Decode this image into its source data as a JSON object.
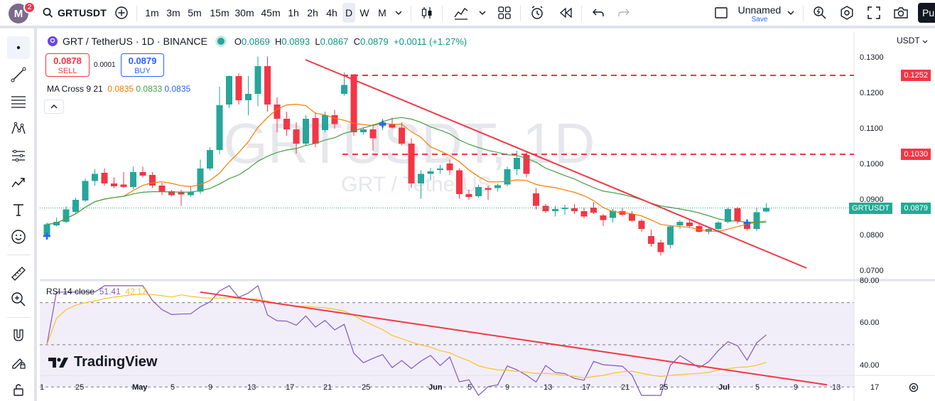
{
  "topbar": {
    "avatar_letter": "M",
    "notifications": "2",
    "symbol": "GRTUSDT",
    "timeframes": [
      "1m",
      "3m",
      "5m",
      "15m",
      "30m",
      "45m",
      "1h",
      "2h",
      "4h",
      "D",
      "W",
      "M"
    ],
    "active_timeframe": "D",
    "layout_name": "Unnamed",
    "layout_save": "Save",
    "publish_label": "Pu"
  },
  "legend": {
    "title": "GRT / TetherUS · 1D · BINANCE",
    "o_label": "O",
    "o": "0.0869",
    "h_label": "H",
    "h": "0.0893",
    "l_label": "L",
    "l": "0.0867",
    "c_label": "C",
    "c": "0.0879",
    "change": "+0.0011 (+1.27%)",
    "sell_price": "0.0878",
    "sell_label": "SELL",
    "spread": "0.0001",
    "buy_price": "0.0879",
    "buy_label": "BUY",
    "ma_title": "MA Cross 9 21",
    "ma_fast": "0.0835",
    "ma_slow": "0.0833",
    "ma_cross": "0.0835",
    "rsi_title": "RSI 14 close",
    "rsi_value": "51.41",
    "rsi_ma": "42.17"
  },
  "watermark": {
    "main": "GRTUSDT, 1D",
    "sub": "GRT / TetherUS"
  },
  "price_axis": {
    "currency": "USDT",
    "ticks": [
      "0.1300",
      "0.1200",
      "0.1100",
      "0.1000",
      "0.0900",
      "0.0800",
      "0.0700"
    ],
    "tags": [
      {
        "label": "0.1252",
        "color": "#f23645"
      },
      {
        "label": "0.1030",
        "color": "#f23645"
      },
      {
        "label": "GRTUSDT",
        "color": "#22ab94"
      },
      {
        "label": "0.0879",
        "color": "#22ab94"
      }
    ],
    "rsi_ticks": [
      "80.00",
      "60.00",
      "40.00"
    ]
  },
  "time_axis": [
    "1",
    "25",
    "May",
    "5",
    "9",
    "13",
    "17",
    "21",
    "25",
    "Jun",
    "5",
    "9",
    "13",
    "17",
    "21",
    "25",
    "Jul",
    "5",
    "9",
    "13",
    "17"
  ],
  "brand": "TradingView",
  "colors": {
    "up": "#26a69a",
    "down": "#f23645",
    "ma_fast": "#f57c00",
    "ma_slow": "#43a047",
    "rsi": "#7e57c2",
    "rsi_ma": "#fbc02d",
    "trend": "#f23645",
    "cross": "#2962ff"
  },
  "chart_data": {
    "type": "candlestick",
    "interval": "1D",
    "y_range": [
      0.0685,
      0.131
    ],
    "levels": [
      0.1252,
      0.103
    ],
    "last_price": 0.0879,
    "trendline_price": [
      [
        0,
        0.1296
      ],
      [
        43,
        0.071
      ]
    ],
    "trendline_rsi": [
      [
        14,
        75
      ],
      [
        44,
        31
      ]
    ],
    "rsi_range": [
      24,
      80
    ],
    "rsi_bands": [
      70,
      50,
      30
    ],
    "candles": [
      [
        0.0798,
        0.0838,
        0.0795,
        0.0833
      ],
      [
        0.083,
        0.0852,
        0.0828,
        0.084
      ],
      [
        0.084,
        0.0884,
        0.0836,
        0.0875
      ],
      [
        0.0868,
        0.0908,
        0.0862,
        0.0902
      ],
      [
        0.09,
        0.0962,
        0.0896,
        0.0955
      ],
      [
        0.0955,
        0.0988,
        0.0942,
        0.0975
      ],
      [
        0.0978,
        0.099,
        0.0942,
        0.0948
      ],
      [
        0.0948,
        0.0965,
        0.0935,
        0.094
      ],
      [
        0.0945,
        0.098,
        0.0935,
        0.0938
      ],
      [
        0.0938,
        0.0995,
        0.0932,
        0.098
      ],
      [
        0.098,
        0.0995,
        0.0965,
        0.097
      ],
      [
        0.0972,
        0.098,
        0.0935,
        0.0942
      ],
      [
        0.0942,
        0.095,
        0.0915,
        0.0925
      ],
      [
        0.0926,
        0.093,
        0.0912,
        0.0915
      ],
      [
        0.0925,
        0.093,
        0.0885,
        0.0917
      ],
      [
        0.0915,
        0.094,
        0.091,
        0.0925
      ],
      [
        0.0925,
        0.1015,
        0.0918,
        0.099
      ],
      [
        0.099,
        0.105,
        0.0985,
        0.1042
      ],
      [
        0.1042,
        0.122,
        0.103,
        0.1168
      ],
      [
        0.117,
        0.1252,
        0.116,
        0.125
      ],
      [
        0.125,
        0.1258,
        0.117,
        0.1182
      ],
      [
        0.1182,
        0.125,
        0.114,
        0.12
      ],
      [
        0.12,
        0.1305,
        0.1165,
        0.1278
      ],
      [
        0.1278,
        0.1305,
        0.115,
        0.117
      ],
      [
        0.117,
        0.119,
        0.1092,
        0.113
      ],
      [
        0.113,
        0.115,
        0.1082,
        0.11
      ],
      [
        0.11,
        0.112,
        0.1032,
        0.106
      ],
      [
        0.106,
        0.114,
        0.1055,
        0.113
      ],
      [
        0.1132,
        0.1148,
        0.105,
        0.106
      ],
      [
        0.1098,
        0.115,
        0.1092,
        0.114
      ],
      [
        0.114,
        0.1155,
        0.1102,
        0.1115
      ],
      [
        0.12,
        0.126,
        0.1195,
        0.1225
      ],
      [
        0.1255,
        0.1255,
        0.1082,
        0.1092
      ],
      [
        0.1092,
        0.1106,
        0.1085,
        0.11
      ],
      [
        0.11,
        0.1115,
        0.104,
        0.1075
      ],
      [
        0.111,
        0.113,
        0.1098,
        0.112
      ],
      [
        0.1115,
        0.1133,
        0.1102,
        0.1105
      ],
      [
        0.1105,
        0.112,
        0.1055,
        0.106
      ],
      [
        0.106,
        0.1075,
        0.0936,
        0.0948
      ],
      [
        0.0948,
        0.0985,
        0.0905,
        0.0975
      ],
      [
        0.0975,
        0.0992,
        0.0957,
        0.0982
      ],
      [
        0.0986,
        0.1,
        0.0975,
        0.099
      ],
      [
        0.1004,
        0.1015,
        0.0972,
        0.0985
      ],
      [
        0.0985,
        0.099,
        0.0905,
        0.0918
      ],
      [
        0.0918,
        0.093,
        0.0902,
        0.091
      ],
      [
        0.0912,
        0.0945,
        0.0908,
        0.0938
      ],
      [
        0.0935,
        0.0942,
        0.0902,
        0.093
      ],
      [
        0.0935,
        0.0948,
        0.0925,
        0.0943
      ],
      [
        0.0945,
        0.0995,
        0.094,
        0.0988
      ],
      [
        0.0988,
        0.104,
        0.0972,
        0.102
      ],
      [
        0.1028,
        0.104,
        0.0965,
        0.0975
      ],
      [
        0.092,
        0.0935,
        0.0875,
        0.0885
      ],
      [
        0.0885,
        0.089,
        0.0865,
        0.087
      ],
      [
        0.087,
        0.0885,
        0.0855,
        0.0876
      ],
      [
        0.0876,
        0.0888,
        0.086,
        0.088
      ],
      [
        0.0878,
        0.089,
        0.0862,
        0.087
      ],
      [
        0.087,
        0.088,
        0.085,
        0.0855
      ],
      [
        0.088,
        0.0895,
        0.0862,
        0.0866
      ],
      [
        0.0858,
        0.0862,
        0.0828,
        0.0845
      ],
      [
        0.0851,
        0.0876,
        0.0838,
        0.0871
      ],
      [
        0.087,
        0.088,
        0.0855,
        0.086
      ],
      [
        0.0862,
        0.087,
        0.084,
        0.0843
      ],
      [
        0.0843,
        0.0848,
        0.0812,
        0.082
      ],
      [
        0.08,
        0.0818,
        0.077,
        0.0778
      ],
      [
        0.0782,
        0.079,
        0.0745,
        0.0755
      ],
      [
        0.0775,
        0.083,
        0.0765,
        0.0827
      ],
      [
        0.083,
        0.0845,
        0.082,
        0.084
      ],
      [
        0.0838,
        0.0845,
        0.0825,
        0.0828
      ],
      [
        0.0828,
        0.0835,
        0.081,
        0.0812
      ],
      [
        0.0812,
        0.0825,
        0.0805,
        0.082
      ],
      [
        0.082,
        0.0842,
        0.081,
        0.0838
      ],
      [
        0.084,
        0.088,
        0.0836,
        0.0876
      ],
      [
        0.0878,
        0.0882,
        0.0835,
        0.0842
      ],
      [
        0.0838,
        0.0845,
        0.0815,
        0.082
      ],
      [
        0.082,
        0.088,
        0.0814,
        0.0867
      ],
      [
        0.0869,
        0.0893,
        0.0867,
        0.0879
      ]
    ]
  }
}
